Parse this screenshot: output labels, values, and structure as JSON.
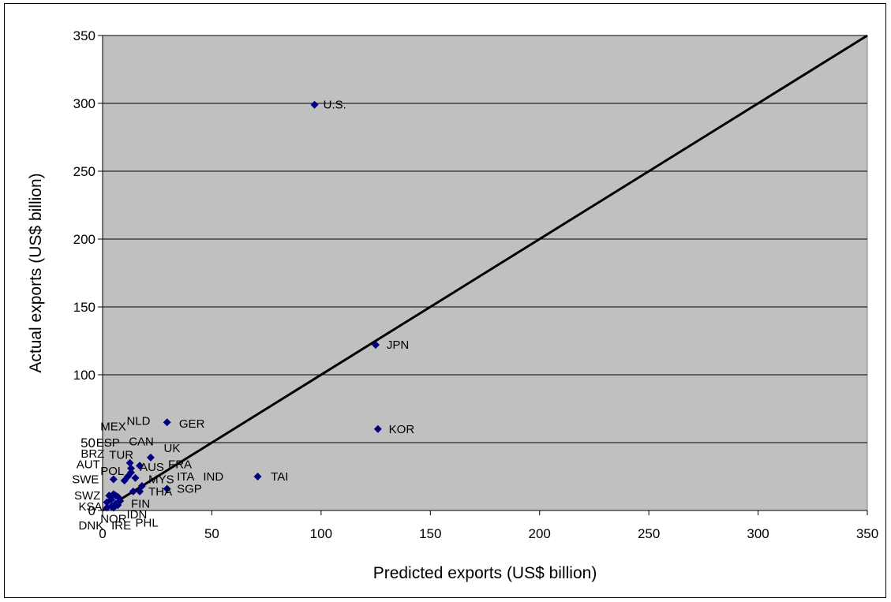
{
  "chart_data": {
    "type": "scatter",
    "title": "",
    "xlabel": "Predicted exports (US$ billion)",
    "ylabel": "Actual exports (US$ billion)",
    "xlim": [
      0,
      350
    ],
    "ylim": [
      0,
      350
    ],
    "xticks": [
      "0",
      "50",
      "100",
      "150",
      "200",
      "250",
      "300",
      "350"
    ],
    "yticks": [
      "0",
      "50",
      "100",
      "150",
      "200",
      "250",
      "300",
      "350"
    ],
    "grid": "horizontal",
    "legend": "none",
    "background": "#c0c0c0",
    "marker_color": "#000080",
    "marker": "diamond",
    "reference_line": {
      "from": [
        0,
        0
      ],
      "to": [
        350,
        350
      ],
      "color": "#000000"
    },
    "points": [
      {
        "label": "U.S.",
        "x": 97,
        "y": 299
      },
      {
        "label": "JPN",
        "x": 125,
        "y": 122
      },
      {
        "label": "KOR",
        "x": 126,
        "y": 60
      },
      {
        "label": "TAI",
        "x": 71,
        "y": 25
      },
      {
        "label": "GER",
        "x": 29.5,
        "y": 65
      },
      {
        "label": "NLD",
        "x": 22,
        "y": 39
      },
      {
        "label": "MEX",
        "x": 12.5,
        "y": 35
      },
      {
        "label": "CAN",
        "x": 17,
        "y": 33
      },
      {
        "label": "ESP",
        "x": 13,
        "y": 31
      },
      {
        "label": "UK",
        "x": 13,
        "y": 28
      },
      {
        "label": "FRA",
        "x": 11.5,
        "y": 25
      },
      {
        "label": "AUS",
        "x": 15,
        "y": 24
      },
      {
        "label": "ITA",
        "x": 10,
        "y": 22
      },
      {
        "label": "IND",
        "x": 29.5,
        "y": 16
      },
      {
        "label": "MYS",
        "x": 18,
        "y": 18
      },
      {
        "label": "SGP",
        "x": 14,
        "y": 14
      },
      {
        "label": "THA",
        "x": 17,
        "y": 14
      },
      {
        "label": "TUR",
        "x": 5,
        "y": 23
      },
      {
        "label": "BRZ",
        "x": 5,
        "y": 12
      },
      {
        "label": "AUT",
        "x": 6,
        "y": 11
      },
      {
        "label": "POL",
        "x": 7,
        "y": 10
      },
      {
        "label": "SWE",
        "x": 3,
        "y": 11
      },
      {
        "label": "SWZ",
        "x": 4,
        "y": 8
      },
      {
        "label": "KSA",
        "x": 2,
        "y": 6
      },
      {
        "label": "FIN",
        "x": 6,
        "y": 5
      },
      {
        "label": "IDN",
        "x": 8,
        "y": 7
      },
      {
        "label": "NOR",
        "x": 4,
        "y": 3
      },
      {
        "label": "PHL",
        "x": 7,
        "y": 4
      },
      {
        "label": "DNK",
        "x": 2,
        "y": 2
      },
      {
        "label": "IRE",
        "x": 5,
        "y": 2
      }
    ]
  },
  "placed_labels": [
    {
      "text": "U.S.",
      "x": 101,
      "y": 299
    },
    {
      "text": "JPN",
      "x": 130,
      "y": 122
    },
    {
      "text": "KOR",
      "x": 131,
      "y": 60
    },
    {
      "text": "TAI",
      "x": 77,
      "y": 25
    },
    {
      "text": "GER",
      "x": 35,
      "y": 64
    },
    {
      "text": "NLD",
      "x": 11,
      "y": 66
    },
    {
      "text": "MEX",
      "x": -1,
      "y": 62
    },
    {
      "text": "CAN",
      "x": 12,
      "y": 51
    },
    {
      "text": "ESP",
      "x": -3,
      "y": 50
    },
    {
      "text": "UK",
      "x": 28,
      "y": 46
    },
    {
      "text": "BRZ",
      "x": -10,
      "y": 42
    },
    {
      "text": "TUR",
      "x": 3,
      "y": 41
    },
    {
      "text": "AUS",
      "x": 17,
      "y": 32
    },
    {
      "text": "FRA",
      "x": 30,
      "y": 34
    },
    {
      "text": "AUT",
      "x": -12,
      "y": 34
    },
    {
      "text": "POL",
      "x": -1,
      "y": 29
    },
    {
      "text": "SWE",
      "x": -14,
      "y": 23
    },
    {
      "text": "MYS",
      "x": 21,
      "y": 23
    },
    {
      "text": "ITA",
      "x": 34,
      "y": 25
    },
    {
      "text": "IND",
      "x": 46,
      "y": 25
    },
    {
      "text": "THA",
      "x": 21,
      "y": 14
    },
    {
      "text": "SGP",
      "x": 34,
      "y": 16
    },
    {
      "text": "SWZ",
      "x": -13,
      "y": 11
    },
    {
      "text": "FIN",
      "x": 13,
      "y": 5
    },
    {
      "text": "KSA",
      "x": -11,
      "y": 3
    },
    {
      "text": "IDN",
      "x": 11,
      "y": -3
    },
    {
      "text": "NOR",
      "x": -1,
      "y": -6
    },
    {
      "text": "PHL",
      "x": 15,
      "y": -9
    },
    {
      "text": "DNK",
      "x": -11,
      "y": -11
    },
    {
      "text": "IRE",
      "x": 4,
      "y": -11
    }
  ]
}
